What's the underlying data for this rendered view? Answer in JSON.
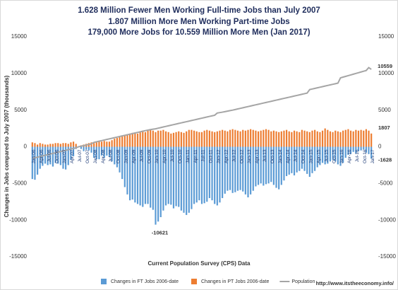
{
  "chart_data": {
    "type": "bar",
    "title": [
      "1.628 Million Fewer Men Working Full-time Jobs than July 2007",
      "1.807 Million More Men Working Part-time Jobs",
      "179,000 More Jobs for 10.559 Million More Men (Jan 2017)"
    ],
    "y_label": "Changes in Jobs compared to  July 2007 (thousands)",
    "x_label": "Current Population Survey (CPS) Data",
    "source": "http://www.itstheeconomy.info/",
    "annotations": [
      "10559",
      "1807",
      "-1628",
      "-10621"
    ],
    "ylim": [
      -15000,
      15000
    ],
    "yticks": [
      -15000,
      -10000,
      -5000,
      0,
      5000,
      10000,
      15000
    ],
    "y2lim": [
      -15000,
      15000
    ],
    "y2ticks": [
      -15000,
      -10000,
      -5000,
      0,
      5000,
      10000,
      15000
    ],
    "grid": false,
    "legend": "bottom",
    "categories": [
      "Jan-06",
      null,
      null,
      "Apr-06",
      null,
      null,
      "Jul-06",
      null,
      null,
      "Oct-06",
      null,
      null,
      "Jan-07",
      null,
      null,
      "Apr-07",
      null,
      null,
      "Jul-07",
      null,
      null,
      "Oct-07",
      null,
      null,
      "Jan-08",
      null,
      null,
      "Apr-08",
      null,
      null,
      "Jul-08",
      null,
      null,
      "Oct-08",
      null,
      null,
      "Jan-09",
      null,
      null,
      "Apr-09",
      null,
      null,
      "Jul-09",
      null,
      null,
      "Oct-09",
      null,
      null,
      "Jan-10",
      null,
      null,
      "Apr-10",
      null,
      null,
      "Jul-10",
      null,
      null,
      "Oct-10",
      null,
      null,
      "Jan-11",
      null,
      null,
      "Apr-11",
      null,
      null,
      "Jul-11",
      null,
      null,
      "Oct-11",
      null,
      null,
      "Jan-12",
      null,
      null,
      "Apr-12",
      null,
      null,
      "Jul-12",
      null,
      null,
      "Oct-12",
      null,
      null,
      "Jan-13",
      null,
      null,
      "Apr-13",
      null,
      null,
      "Jul-13",
      null,
      null,
      "Oct-13",
      null,
      null,
      "Jan-14",
      null,
      null,
      "Apr-14",
      null,
      null,
      "Jul-14",
      null,
      null,
      "Oct-14",
      null,
      null,
      "Jan-15",
      null,
      null,
      "Apr-15",
      null,
      null,
      "Jul-15",
      null,
      null,
      "Oct-15",
      null,
      null,
      "Jan-16",
      null,
      null,
      "Apr-16",
      null,
      null,
      "Jul-16",
      null,
      null,
      "Oct-16",
      null,
      null,
      "Jan-17"
    ],
    "series": [
      {
        "name": "Changes in FT Jobs 2006-date",
        "color": "#5b9bd5",
        "kind": "bar",
        "values": [
          -4400,
          -4500,
          -3800,
          -3000,
          -2600,
          -2300,
          -2500,
          -2400,
          -2700,
          -2200,
          -2300,
          -2500,
          -3000,
          -3100,
          -2500,
          -1800,
          -1300,
          -300,
          0,
          -300,
          -600,
          -400,
          -500,
          -800,
          -1500,
          -1700,
          -1700,
          -1200,
          -1500,
          -1200,
          -1400,
          -2000,
          -2400,
          -2800,
          -3500,
          -4400,
          -5500,
          -6500,
          -7300,
          -7200,
          -7600,
          -7800,
          -8000,
          -8200,
          -7800,
          -7800,
          -8300,
          -8600,
          -10621,
          -10200,
          -9600,
          -8700,
          -8000,
          -7800,
          -7900,
          -8400,
          -8100,
          -8200,
          -8700,
          -9000,
          -9300,
          -9000,
          -8500,
          -7800,
          -7600,
          -7300,
          -7800,
          -7700,
          -7500,
          -7000,
          -7300,
          -7800,
          -8000,
          -7600,
          -7000,
          -6400,
          -6000,
          -5900,
          -6300,
          -6200,
          -6000,
          -5900,
          -6100,
          -6500,
          -6900,
          -6500,
          -6000,
          -5400,
          -5200,
          -5000,
          -5300,
          -5100,
          -5000,
          -4800,
          -5200,
          -5600,
          -5800,
          -5200,
          -4600,
          -4000,
          -3800,
          -3600,
          -3900,
          -3500,
          -3300,
          -3000,
          -3300,
          -3700,
          -4100,
          -3600,
          -3300,
          -2800,
          -2500,
          -2200,
          -2400,
          -2300,
          -2000,
          -1800,
          -2000,
          -2400,
          -2600,
          -2200,
          -1500,
          -1100,
          -1000,
          -700,
          -900,
          -600,
          -500,
          -400,
          -800,
          -1000,
          -1628
        ]
      },
      {
        "name": "Changes in PT Jobs 2006-date",
        "color": "#ed7d31",
        "kind": "bar",
        "values": [
          600,
          500,
          300,
          500,
          400,
          300,
          300,
          400,
          400,
          500,
          500,
          400,
          500,
          500,
          400,
          600,
          700,
          400,
          0,
          200,
          300,
          400,
          500,
          600,
          500,
          600,
          700,
          700,
          800,
          700,
          700,
          900,
          1100,
          1200,
          1300,
          1500,
          1500,
          1700,
          1800,
          1900,
          1900,
          1800,
          2100,
          2200,
          2000,
          2200,
          2300,
          2200,
          2000,
          2200,
          2200,
          2300,
          2100,
          2000,
          1800,
          1900,
          2000,
          2100,
          2000,
          1900,
          2100,
          2300,
          2300,
          2200,
          2100,
          2000,
          2000,
          2200,
          2300,
          2200,
          2100,
          2000,
          2100,
          2200,
          2300,
          2200,
          2100,
          2300,
          2400,
          2300,
          2200,
          2100,
          2300,
          2200,
          2300,
          2400,
          2300,
          2200,
          2100,
          2200,
          2300,
          2400,
          2300,
          2100,
          2200,
          2100,
          2000,
          2100,
          2200,
          2300,
          2100,
          2000,
          2200,
          2100,
          2000,
          2300,
          2200,
          2100,
          2000,
          2200,
          2300,
          2100,
          2000,
          2200,
          2500,
          2300,
          2100,
          2000,
          2200,
          2100,
          2000,
          2200,
          2300,
          2400,
          2200,
          2100,
          2300,
          2200,
          2300,
          2200,
          2400,
          2200,
          1807
        ]
      },
      {
        "name": "Population",
        "color": "#a5a5a5",
        "kind": "line",
        "axis": "y2",
        "values": [
          -1600,
          -1500,
          -1420,
          -1330,
          -1250,
          -1160,
          -1080,
          -990,
          -900,
          -820,
          -730,
          -650,
          -570,
          -480,
          -400,
          -310,
          -230,
          -150,
          0,
          80,
          160,
          240,
          320,
          400,
          600,
          680,
          760,
          840,
          920,
          1000,
          1080,
          1160,
          1240,
          1320,
          1400,
          1480,
          1560,
          1640,
          1720,
          1800,
          1880,
          1960,
          2040,
          2120,
          2200,
          2270,
          2340,
          2400,
          2450,
          2540,
          2620,
          2700,
          2780,
          2860,
          2940,
          3020,
          3100,
          3180,
          3260,
          3340,
          3420,
          3500,
          3580,
          3660,
          3740,
          3820,
          3900,
          3980,
          4060,
          4140,
          4220,
          4300,
          4600,
          4660,
          4720,
          4790,
          4860,
          4930,
          5000,
          5080,
          5160,
          5240,
          5320,
          5400,
          5480,
          5560,
          5640,
          5720,
          5800,
          5880,
          5960,
          6040,
          6120,
          6200,
          6280,
          6360,
          6440,
          6520,
          6600,
          6680,
          6760,
          6840,
          6920,
          7000,
          7080,
          7160,
          7240,
          7320,
          7800,
          7880,
          7960,
          8040,
          8120,
          8200,
          8280,
          8360,
          8440,
          8520,
          8600,
          8680,
          9400,
          9500,
          9600,
          9700,
          9800,
          9900,
          10000,
          10100,
          10200,
          10300,
          10400,
          10800,
          10559
        ]
      }
    ]
  }
}
